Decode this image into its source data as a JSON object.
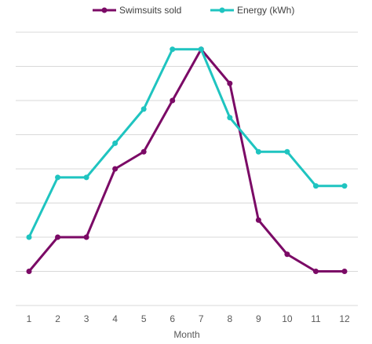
{
  "chart_data": {
    "type": "line",
    "title": "",
    "xlabel": "Month",
    "ylabel": "",
    "categories": [
      "1",
      "2",
      "3",
      "4",
      "5",
      "6",
      "7",
      "8",
      "9",
      "10",
      "11",
      "12"
    ],
    "ylim": [
      0,
      80
    ],
    "grid": true,
    "legend_position": "top",
    "series": [
      {
        "name": "Swimsuits sold",
        "color": "#7b0a66",
        "values": [
          10,
          20,
          20,
          40,
          45,
          60,
          75,
          65,
          25,
          15,
          10,
          10
        ]
      },
      {
        "name": "Energy (kWh)",
        "color": "#1fc4c0",
        "values": [
          20,
          37.5,
          37.5,
          47.5,
          57.5,
          75,
          75,
          55,
          45,
          45,
          35,
          35
        ]
      }
    ]
  }
}
